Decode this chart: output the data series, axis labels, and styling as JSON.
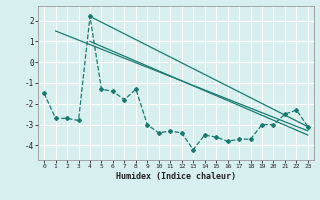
{
  "xlabel": "Humidex (Indice chaleur)",
  "bg_color": "#d8eff0",
  "grid_color": "#ffffff",
  "line_color": "#1a7a6e",
  "xlim": [
    -0.5,
    23.5
  ],
  "ylim": [
    -4.7,
    2.7
  ],
  "xticks": [
    0,
    1,
    2,
    3,
    4,
    5,
    6,
    7,
    8,
    9,
    10,
    11,
    12,
    13,
    14,
    15,
    16,
    17,
    18,
    19,
    20,
    21,
    22,
    23
  ],
  "yticks": [
    -4,
    -3,
    -2,
    -1,
    0,
    1,
    2
  ],
  "main_x": [
    0,
    1,
    2,
    3,
    4,
    5,
    6,
    7,
    8,
    9,
    10,
    11,
    12,
    13,
    14,
    15,
    16,
    17,
    18,
    19,
    20,
    21,
    22,
    23
  ],
  "main_y": [
    -1.5,
    -2.7,
    -2.7,
    -2.8,
    2.2,
    -1.3,
    -1.4,
    -1.8,
    -1.3,
    -3.0,
    -3.4,
    -3.3,
    -3.4,
    -4.2,
    -3.5,
    -3.6,
    -3.8,
    -3.7,
    -3.7,
    -3.0,
    -3.0,
    -2.5,
    -2.3,
    -3.1
  ],
  "line1_x": [
    1,
    23
  ],
  "line1_y": [
    1.5,
    -3.3
  ],
  "line2_x": [
    4,
    23
  ],
  "line2_y": [
    2.2,
    -3.1
  ],
  "line3_x": [
    4,
    23
  ],
  "line3_y": [
    1.0,
    -3.5
  ]
}
